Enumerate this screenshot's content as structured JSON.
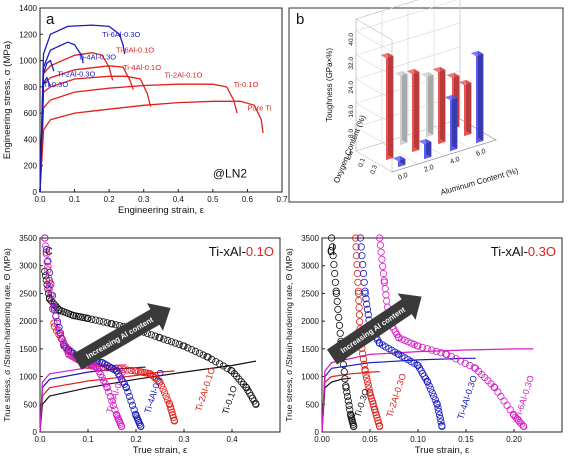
{
  "colors": {
    "red": "#e0201b",
    "blue": "#1a1ac0",
    "magenta": "#d81cc8",
    "black": "#111111",
    "grey": "#c9c9c9",
    "panel_b_red": "#e85454",
    "panel_b_blue": "#5b5bf0",
    "panel_b_grey": "#d0d0d0"
  },
  "chart_data": [
    {
      "panel": "a",
      "type": "line",
      "xlabel": "Engineering strain, ε",
      "ylabel": "Engineering stress, σ (MPa)",
      "xlim": [
        0,
        0.7
      ],
      "ylim": [
        0,
        1400
      ],
      "xticks": [
        "0.0",
        "0.1",
        "0.2",
        "0.3",
        "0.4",
        "0.5",
        "0.6",
        "0.7"
      ],
      "yticks": [
        "0",
        "200",
        "400",
        "600",
        "800",
        "1000",
        "1200",
        "1400"
      ],
      "annotation": "@LN2",
      "series": [
        {
          "name": "Pure Ti",
          "color": "red",
          "x": [
            0,
            0.01,
            0.03,
            0.1,
            0.2,
            0.3,
            0.4,
            0.5,
            0.58,
            0.62,
            0.64,
            0.645
          ],
          "y": [
            0,
            470,
            550,
            600,
            630,
            660,
            680,
            690,
            690,
            660,
            550,
            450
          ]
        },
        {
          "name": "Ti-0.1O",
          "color": "red",
          "x": [
            0,
            0.01,
            0.03,
            0.1,
            0.2,
            0.3,
            0.4,
            0.5,
            0.54,
            0.56,
            0.57
          ],
          "y": [
            0,
            640,
            700,
            760,
            790,
            810,
            820,
            820,
            800,
            700,
            600
          ]
        },
        {
          "name": "Ti-2Al-0.1O",
          "color": "red",
          "x": [
            0,
            0.01,
            0.03,
            0.1,
            0.2,
            0.25,
            0.29,
            0.31,
            0.32
          ],
          "y": [
            0,
            760,
            800,
            860,
            880,
            880,
            860,
            750,
            650
          ]
        },
        {
          "name": "Ti-4Al-0.1O",
          "color": "red",
          "x": [
            0,
            0.01,
            0.03,
            0.1,
            0.2,
            0.24,
            0.26,
            0.27
          ],
          "y": [
            0,
            820,
            870,
            930,
            960,
            950,
            850,
            780
          ]
        },
        {
          "name": "Ti-6Al-0.1O",
          "color": "red",
          "x": [
            0,
            0.01,
            0.03,
            0.1,
            0.15,
            0.18,
            0.2,
            0.21
          ],
          "y": [
            0,
            900,
            960,
            1040,
            1060,
            1040,
            950,
            850
          ]
        },
        {
          "name": "Ti-0.3O",
          "color": "blue",
          "x": [
            0,
            0.01,
            0.015,
            0.02,
            0.03
          ],
          "y": [
            0,
            820,
            850,
            870,
            800
          ]
        },
        {
          "name": "Ti-2Al-0.3O",
          "color": "blue",
          "x": [
            0,
            0.01,
            0.02,
            0.03,
            0.04
          ],
          "y": [
            0,
            900,
            980,
            1000,
            920
          ]
        },
        {
          "name": "Ti-4Al-0.3O",
          "color": "blue",
          "x": [
            0,
            0.01,
            0.03,
            0.08,
            0.1,
            0.12,
            0.125
          ],
          "y": [
            0,
            950,
            1080,
            1140,
            1120,
            1040,
            980
          ]
        },
        {
          "name": "Ti-6Al-0.3O",
          "color": "blue",
          "x": [
            0,
            0.01,
            0.03,
            0.08,
            0.15,
            0.2,
            0.23,
            0.24,
            0.245
          ],
          "y": [
            0,
            1050,
            1200,
            1260,
            1270,
            1260,
            1200,
            1120,
            1050
          ]
        }
      ],
      "labels": [
        "Ti-6Al-0.3O",
        "Ti-6Al-0.1O",
        "Ti-4Al-0.3O",
        "Ti-4Al-0.1O",
        "Ti-2Al-0.3O",
        "Ti-2Al-0.1O",
        "Ti-0.3O",
        "Ti-0.1O",
        "Pure Ti"
      ]
    },
    {
      "panel": "b",
      "type": "bar3d",
      "zlabel": "Toughness (GPa×%)",
      "xlabel": "Aluminum Content (%)",
      "ylabel": "Oxygen Content (%)",
      "zticks": [
        "8.0",
        "16.0",
        "24.0",
        "32.0",
        "40.0"
      ],
      "xticks": [
        "0.0",
        "2.0",
        "4.0",
        "6.0"
      ],
      "yticks": [
        "low",
        "0.1",
        "0.3"
      ],
      "bars": [
        {
          "al": 0,
          "o": "low",
          "value": 0,
          "color": "red"
        },
        {
          "al": 0,
          "o": "0.1",
          "value": 34,
          "color": "red"
        },
        {
          "al": 0,
          "o": "0.3",
          "value": 2,
          "color": "blue"
        },
        {
          "al": 2,
          "o": "low",
          "value": 23,
          "color": "grey"
        },
        {
          "al": 2,
          "o": "0.1",
          "value": 26,
          "color": "red"
        },
        {
          "al": 2,
          "o": "0.3",
          "value": 5,
          "color": "blue"
        },
        {
          "al": 4,
          "o": "low",
          "value": 20,
          "color": "grey"
        },
        {
          "al": 4,
          "o": "0.1",
          "value": 24,
          "color": "red"
        },
        {
          "al": 4,
          "o": "0.3",
          "value": 17,
          "color": "blue"
        },
        {
          "al": 6,
          "o": "low",
          "value": 17,
          "color": "red"
        },
        {
          "al": 6,
          "o": "0.1",
          "value": 17,
          "color": "red"
        },
        {
          "al": 6,
          "o": "0.3",
          "value": 29,
          "color": "blue"
        }
      ]
    },
    {
      "panel": "c",
      "type": "line",
      "title_prefix": "Ti-xAl-",
      "title_suffix": "0.1O",
      "xlabel": "True strain, ε",
      "ylabel": "True stress, σ /Strain-hardening rate, Θ (MPa)",
      "xlim": [
        0,
        0.5
      ],
      "ylim": [
        0,
        3500
      ],
      "xticks": [
        "0.0",
        "0.1",
        "0.2",
        "0.3",
        "0.4"
      ],
      "yticks": [
        "0",
        "500",
        "1000",
        "1500",
        "2000",
        "2500",
        "3000",
        "3500"
      ],
      "arrow_label": "Increasing Al content",
      "stress": [
        {
          "name": "Ti-0.1O",
          "color": "black",
          "x": [
            0,
            0.005,
            0.02,
            0.1,
            0.2,
            0.3,
            0.4,
            0.45
          ],
          "y": [
            0,
            500,
            650,
            800,
            950,
            1080,
            1200,
            1280
          ]
        },
        {
          "name": "Ti-2Al-0.1O",
          "color": "red",
          "x": [
            0,
            0.005,
            0.02,
            0.1,
            0.2,
            0.25,
            0.28
          ],
          "y": [
            0,
            650,
            800,
            920,
            1020,
            1080,
            1100
          ]
        },
        {
          "name": "Ti-4Al-0.1O",
          "color": "blue",
          "x": [
            0,
            0.005,
            0.02,
            0.1,
            0.15,
            0.2,
            0.22
          ],
          "y": [
            0,
            800,
            950,
            1080,
            1130,
            1160,
            1170
          ]
        },
        {
          "name": "Ti-6Al-0.1O",
          "color": "magenta",
          "x": [
            0,
            0.005,
            0.02,
            0.1,
            0.15,
            0.18
          ],
          "y": [
            0,
            900,
            1050,
            1160,
            1200,
            1210
          ]
        }
      ],
      "hardening": [
        {
          "name": "Ti-0.1O",
          "color": "black",
          "x": [
            0.01,
            0.02,
            0.04,
            0.07,
            0.1,
            0.15,
            0.2,
            0.25,
            0.3,
            0.35,
            0.4,
            0.43,
            0.45
          ],
          "y": [
            2900,
            2400,
            2200,
            2100,
            2050,
            1950,
            1850,
            1700,
            1550,
            1350,
            1100,
            800,
            500
          ]
        },
        {
          "name": "Ti-2Al-0.1O",
          "color": "red",
          "x": [
            0.01,
            0.03,
            0.06,
            0.1,
            0.15,
            0.2,
            0.23,
            0.25,
            0.27,
            0.28
          ],
          "y": [
            3500,
            1900,
            1450,
            1200,
            1150,
            1100,
            1050,
            900,
            500,
            200
          ]
        },
        {
          "name": "Ti-4Al-0.1O",
          "color": "blue",
          "x": [
            0.01,
            0.03,
            0.05,
            0.08,
            0.1,
            0.13,
            0.16,
            0.18,
            0.2,
            0.21
          ],
          "y": [
            3500,
            2200,
            1550,
            1350,
            1300,
            1250,
            1100,
            800,
            300,
            100
          ]
        },
        {
          "name": "Ti-6Al-0.1O",
          "color": "magenta",
          "x": [
            0.01,
            0.02,
            0.04,
            0.06,
            0.08,
            0.1,
            0.12,
            0.14,
            0.16,
            0.17
          ],
          "y": [
            3500,
            2600,
            1800,
            1400,
            1300,
            1250,
            1150,
            800,
            300,
            100
          ]
        }
      ],
      "curve_labels": [
        "Ti-0.1O",
        "Ti-2Al-0.1O",
        "Ti-4Al-0.1O",
        "Ti-6Al-0.1O"
      ]
    },
    {
      "panel": "d",
      "type": "line",
      "title_prefix": "Ti-xAl-",
      "title_suffix": "0.3O",
      "xlabel": "True strain, ε",
      "ylabel": "True stress, σ /Strain-hardening rate, Θ (MPa)",
      "xlim": [
        0,
        0.25
      ],
      "ylim": [
        0,
        3500
      ],
      "xticks": [
        "0.00",
        "0.05",
        "0.10",
        "0.15",
        "0.20"
      ],
      "yticks": [
        "0",
        "500",
        "1000",
        "1500",
        "2000",
        "2500",
        "3000",
        "3500"
      ],
      "arrow_label": "Increasing Al content",
      "stress": [
        {
          "name": "Ti-0.3O",
          "color": "black",
          "x": [
            0,
            0.003,
            0.01,
            0.02,
            0.03
          ],
          "y": [
            0,
            800,
            900,
            950,
            970
          ]
        },
        {
          "name": "Ti-2Al-0.3O",
          "color": "red",
          "x": [
            0,
            0.003,
            0.01,
            0.03,
            0.05,
            0.06
          ],
          "y": [
            0,
            900,
            1000,
            1050,
            1080,
            1090
          ]
        },
        {
          "name": "Ti-4Al-0.3O",
          "color": "blue",
          "x": [
            0,
            0.003,
            0.01,
            0.05,
            0.1,
            0.15,
            0.16
          ],
          "y": [
            0,
            1000,
            1150,
            1250,
            1300,
            1330,
            1330
          ]
        },
        {
          "name": "Ti-6Al-0.3O",
          "color": "magenta",
          "x": [
            0,
            0.003,
            0.01,
            0.05,
            0.1,
            0.15,
            0.2,
            0.22
          ],
          "y": [
            0,
            1100,
            1250,
            1400,
            1450,
            1480,
            1500,
            1500
          ]
        }
      ],
      "hardening": [
        {
          "name": "Ti-0.3O",
          "color": "black",
          "x": [
            0.01,
            0.015,
            0.02,
            0.025,
            0.03,
            0.033
          ],
          "y": [
            3500,
            2500,
            1600,
            800,
            300,
            100
          ]
        },
        {
          "name": "Ti-2Al-0.3O",
          "color": "red",
          "x": [
            0.035,
            0.038,
            0.04,
            0.045,
            0.05,
            0.055,
            0.06
          ],
          "y": [
            3500,
            2500,
            1700,
            1100,
            700,
            400,
            100
          ]
        },
        {
          "name": "Ti-4Al-0.3O",
          "color": "blue",
          "x": [
            0.04,
            0.045,
            0.05,
            0.06,
            0.08,
            0.1,
            0.11,
            0.12,
            0.125
          ],
          "y": [
            3500,
            2500,
            1900,
            1600,
            1400,
            1200,
            900,
            500,
            100
          ]
        },
        {
          "name": "Ti-6Al-0.3O",
          "color": "magenta",
          "x": [
            0.06,
            0.065,
            0.07,
            0.08,
            0.1,
            0.13,
            0.16,
            0.18,
            0.2,
            0.21
          ],
          "y": [
            3500,
            2700,
            2000,
            1700,
            1550,
            1400,
            1150,
            800,
            300,
            100
          ]
        }
      ],
      "curve_labels": [
        "Ti-0.3O",
        "Ti-2Al-0.3O",
        "Ti-4Al-0.3O",
        "Ti-6Al-0.3O"
      ]
    }
  ],
  "texts": {
    "a_letter": "a",
    "b_letter": "b",
    "c_letter": "c",
    "d_letter": "d"
  }
}
